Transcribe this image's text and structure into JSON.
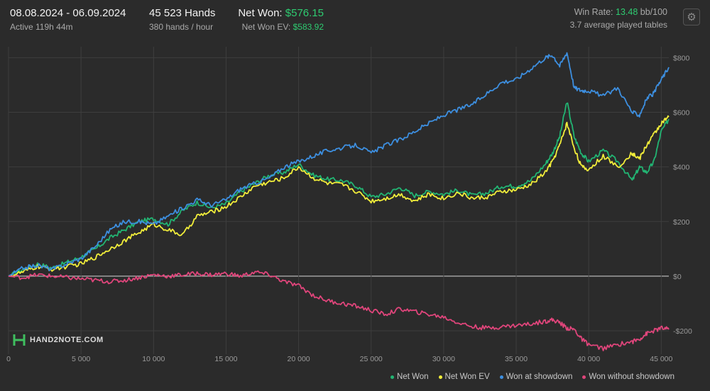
{
  "header": {
    "date_range": "08.08.2024 - 06.09.2024",
    "active_time": "Active 119h 44m",
    "hands": "45 523 Hands",
    "hands_per_hour": "380 hands / hour",
    "net_won_label": "Net Won:",
    "net_won_value": "$576.15",
    "net_won_ev_label": "Net Won  EV:",
    "net_won_ev_value": "$583.92",
    "win_rate_label": "Win Rate:",
    "win_rate_value": "13.48",
    "win_rate_unit": "bb/100",
    "tables": "3.7 average played tables"
  },
  "icons": {
    "settings": "gear-icon",
    "logo": "hand2note-logo-icon"
  },
  "logo_text": "HAND2NOTE.COM",
  "colors": {
    "background": "#2b2b2b",
    "net_won": "#22b573",
    "net_won_ev": "#f2ee3a",
    "won_at_showdown": "#3d8fe0",
    "won_without_showdown": "#e0457b",
    "green_text": "#2ecc71"
  },
  "chart_data": {
    "type": "line",
    "xlim": [
      0,
      45523
    ],
    "ylim": [
      -270,
      840
    ],
    "x_ticks": [
      0,
      5000,
      10000,
      15000,
      20000,
      25000,
      30000,
      35000,
      40000,
      45000
    ],
    "x_tick_labels": [
      "0",
      "5 000",
      "10 000",
      "15 000",
      "20 000",
      "25 000",
      "30 000",
      "35 000",
      "40 000",
      "45 000"
    ],
    "y_ticks": [
      -200,
      0,
      200,
      400,
      600,
      800
    ],
    "y_tick_labels": [
      "-$200",
      "$0",
      "$200",
      "$400",
      "$600",
      "$800"
    ],
    "grid": true,
    "legend_position": "bottom-right",
    "x": [
      0,
      1000,
      2000,
      3000,
      4000,
      5000,
      6000,
      7000,
      8000,
      9000,
      10000,
      11000,
      12000,
      13000,
      14000,
      15000,
      16000,
      17000,
      18000,
      19000,
      20000,
      21000,
      22000,
      23000,
      24000,
      25000,
      26000,
      27000,
      28000,
      29000,
      30000,
      31000,
      32000,
      33000,
      34000,
      35000,
      36000,
      37000,
      37500,
      38000,
      38500,
      39000,
      39500,
      40000,
      41000,
      42000,
      43000,
      43500,
      44000,
      44500,
      45000,
      45523
    ],
    "series": [
      {
        "name": "Net Won",
        "color": "#22b573",
        "values": [
          0,
          25,
          45,
          30,
          50,
          70,
          100,
          140,
          170,
          200,
          210,
          190,
          240,
          270,
          250,
          265,
          310,
          340,
          370,
          380,
          410,
          370,
          355,
          350,
          330,
          290,
          300,
          325,
          295,
          310,
          300,
          315,
          295,
          305,
          330,
          330,
          350,
          410,
          450,
          510,
          640,
          510,
          450,
          420,
          460,
          420,
          350,
          400,
          380,
          420,
          530,
          575
        ]
      },
      {
        "name": "Net Won  EV",
        "color": "#f2ee3a",
        "values": [
          0,
          15,
          35,
          25,
          35,
          45,
          70,
          100,
          130,
          160,
          190,
          170,
          150,
          220,
          235,
          255,
          290,
          330,
          345,
          360,
          400,
          360,
          340,
          335,
          310,
          275,
          285,
          300,
          275,
          300,
          285,
          305,
          285,
          290,
          310,
          315,
          335,
          380,
          420,
          480,
          560,
          470,
          400,
          390,
          440,
          400,
          450,
          430,
          480,
          520,
          560,
          583
        ]
      },
      {
        "name": "Won at showdown",
        "color": "#3d8fe0",
        "values": [
          0,
          30,
          40,
          25,
          45,
          65,
          110,
          170,
          200,
          200,
          190,
          220,
          250,
          280,
          260,
          280,
          320,
          340,
          360,
          400,
          420,
          440,
          460,
          470,
          480,
          450,
          480,
          500,
          530,
          560,
          590,
          610,
          630,
          670,
          710,
          720,
          760,
          800,
          810,
          770,
          820,
          690,
          680,
          680,
          660,
          690,
          600,
          590,
          650,
          670,
          720,
          765
        ]
      },
      {
        "name": "Won without showdown",
        "color": "#e0457b",
        "values": [
          0,
          -5,
          5,
          0,
          -5,
          -10,
          -15,
          -20,
          -15,
          -5,
          5,
          0,
          5,
          10,
          5,
          10,
          0,
          15,
          5,
          -20,
          -35,
          -70,
          -90,
          -100,
          -110,
          -125,
          -140,
          -120,
          -130,
          -140,
          -150,
          -170,
          -185,
          -190,
          -185,
          -180,
          -175,
          -165,
          -160,
          -170,
          -190,
          -195,
          -230,
          -250,
          -265,
          -250,
          -240,
          -230,
          -210,
          -200,
          -190,
          -195
        ]
      }
    ]
  }
}
